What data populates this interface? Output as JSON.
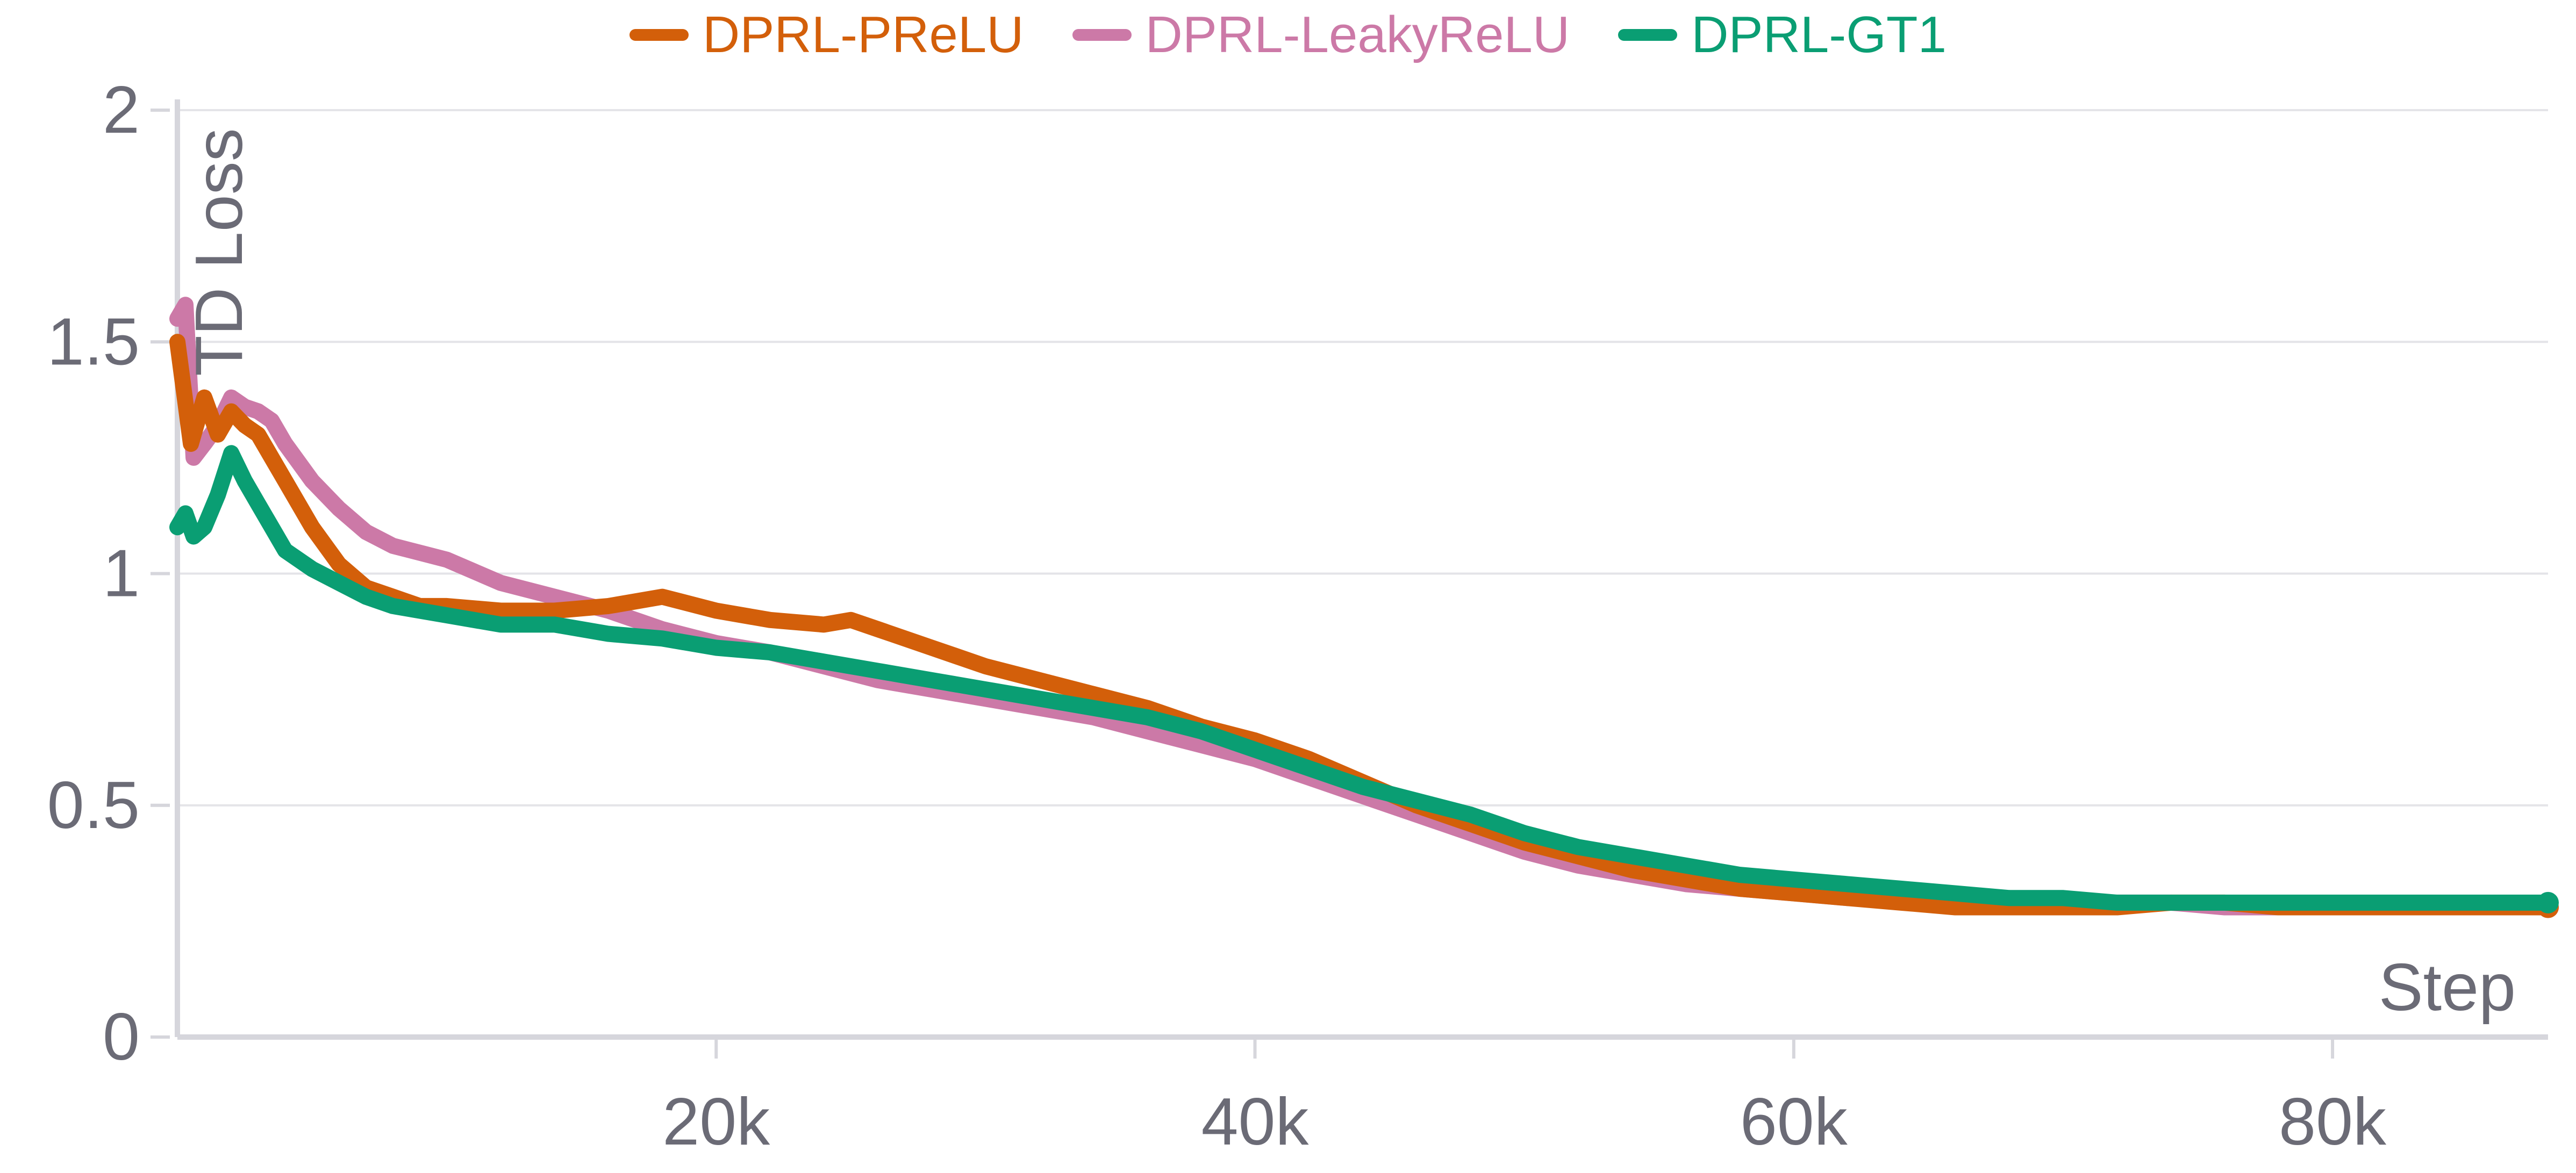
{
  "chart_data": {
    "type": "line",
    "title": "",
    "xlabel": "Step",
    "ylabel": "TD Loss",
    "xlim": [
      0,
      88000
    ],
    "ylim": [
      0,
      2
    ],
    "x_ticks": [
      20000,
      40000,
      60000,
      80000
    ],
    "x_tick_labels": [
      "20k",
      "40k",
      "60k",
      "80k"
    ],
    "y_ticks": [
      0,
      0.5,
      1,
      1.5,
      2
    ],
    "y_tick_labels": [
      "0",
      "0.5",
      "1",
      "1.5",
      "2"
    ],
    "grid": "horizontal",
    "legend_position": "top-center",
    "series": [
      {
        "name": "DPRL-PReLU",
        "color": "#d35f0a",
        "x": [
          0,
          500,
          1000,
          1500,
          2000,
          2500,
          3000,
          3500,
          4000,
          5000,
          6000,
          7000,
          8000,
          9000,
          10000,
          12000,
          14000,
          16000,
          18000,
          20000,
          22000,
          24000,
          25000,
          26000,
          28000,
          30000,
          32000,
          34000,
          36000,
          38000,
          40000,
          42000,
          44000,
          46000,
          48000,
          50000,
          52000,
          54000,
          56000,
          58000,
          60000,
          62000,
          64000,
          66000,
          68000,
          70000,
          72000,
          74000,
          76000,
          78000,
          80000,
          82000,
          84000,
          86000,
          88000
        ],
        "y": [
          1.5,
          1.28,
          1.38,
          1.3,
          1.35,
          1.32,
          1.3,
          1.25,
          1.2,
          1.1,
          1.02,
          0.97,
          0.95,
          0.93,
          0.93,
          0.92,
          0.92,
          0.93,
          0.95,
          0.92,
          0.9,
          0.89,
          0.9,
          0.88,
          0.84,
          0.8,
          0.77,
          0.74,
          0.71,
          0.67,
          0.64,
          0.6,
          0.55,
          0.5,
          0.46,
          0.42,
          0.39,
          0.36,
          0.34,
          0.32,
          0.31,
          0.3,
          0.29,
          0.28,
          0.28,
          0.28,
          0.28,
          0.29,
          0.29,
          0.28,
          0.28,
          0.28,
          0.28,
          0.28,
          0.28
        ]
      },
      {
        "name": "DPRL-LeakyReLU",
        "color": "#cc79a7",
        "x": [
          0,
          300,
          600,
          1000,
          1500,
          2000,
          2500,
          3000,
          3500,
          4000,
          5000,
          6000,
          7000,
          8000,
          10000,
          12000,
          14000,
          16000,
          18000,
          20000,
          22000,
          24000,
          26000,
          28000,
          30000,
          32000,
          34000,
          36000,
          38000,
          40000,
          42000,
          44000,
          46000,
          48000,
          50000,
          52000,
          54000,
          56000,
          58000,
          60000,
          62000,
          64000,
          66000,
          68000,
          70000,
          72000,
          74000,
          76000,
          78000,
          80000,
          82000,
          84000,
          86000,
          88000
        ],
        "y": [
          1.55,
          1.58,
          1.25,
          1.28,
          1.32,
          1.38,
          1.36,
          1.35,
          1.33,
          1.28,
          1.2,
          1.14,
          1.09,
          1.06,
          1.03,
          0.98,
          0.95,
          0.92,
          0.88,
          0.85,
          0.83,
          0.8,
          0.77,
          0.75,
          0.73,
          0.71,
          0.69,
          0.66,
          0.63,
          0.6,
          0.56,
          0.52,
          0.48,
          0.44,
          0.4,
          0.37,
          0.35,
          0.33,
          0.32,
          0.31,
          0.3,
          0.3,
          0.3,
          0.29,
          0.29,
          0.29,
          0.29,
          0.28,
          0.28,
          0.28,
          0.28,
          0.28,
          0.28,
          0.28
        ]
      },
      {
        "name": "DPRL-GT1",
        "color": "#0a9e73",
        "x": [
          0,
          300,
          600,
          1000,
          1500,
          2000,
          2500,
          3000,
          3500,
          4000,
          5000,
          6000,
          7000,
          8000,
          10000,
          12000,
          14000,
          16000,
          18000,
          20000,
          22000,
          24000,
          26000,
          28000,
          30000,
          32000,
          34000,
          36000,
          38000,
          40000,
          42000,
          44000,
          46000,
          48000,
          50000,
          52000,
          54000,
          56000,
          58000,
          60000,
          62000,
          64000,
          66000,
          68000,
          70000,
          72000,
          74000,
          76000,
          78000,
          80000,
          82000,
          84000,
          86000,
          88000
        ],
        "y": [
          1.1,
          1.13,
          1.08,
          1.1,
          1.17,
          1.26,
          1.2,
          1.15,
          1.1,
          1.05,
          1.01,
          0.98,
          0.95,
          0.93,
          0.91,
          0.89,
          0.89,
          0.87,
          0.86,
          0.84,
          0.83,
          0.81,
          0.79,
          0.77,
          0.75,
          0.73,
          0.71,
          0.69,
          0.66,
          0.62,
          0.58,
          0.54,
          0.51,
          0.48,
          0.44,
          0.41,
          0.39,
          0.37,
          0.35,
          0.34,
          0.33,
          0.32,
          0.31,
          0.3,
          0.3,
          0.29,
          0.29,
          0.29,
          0.29,
          0.29,
          0.29,
          0.29,
          0.29,
          0.29
        ]
      }
    ]
  }
}
